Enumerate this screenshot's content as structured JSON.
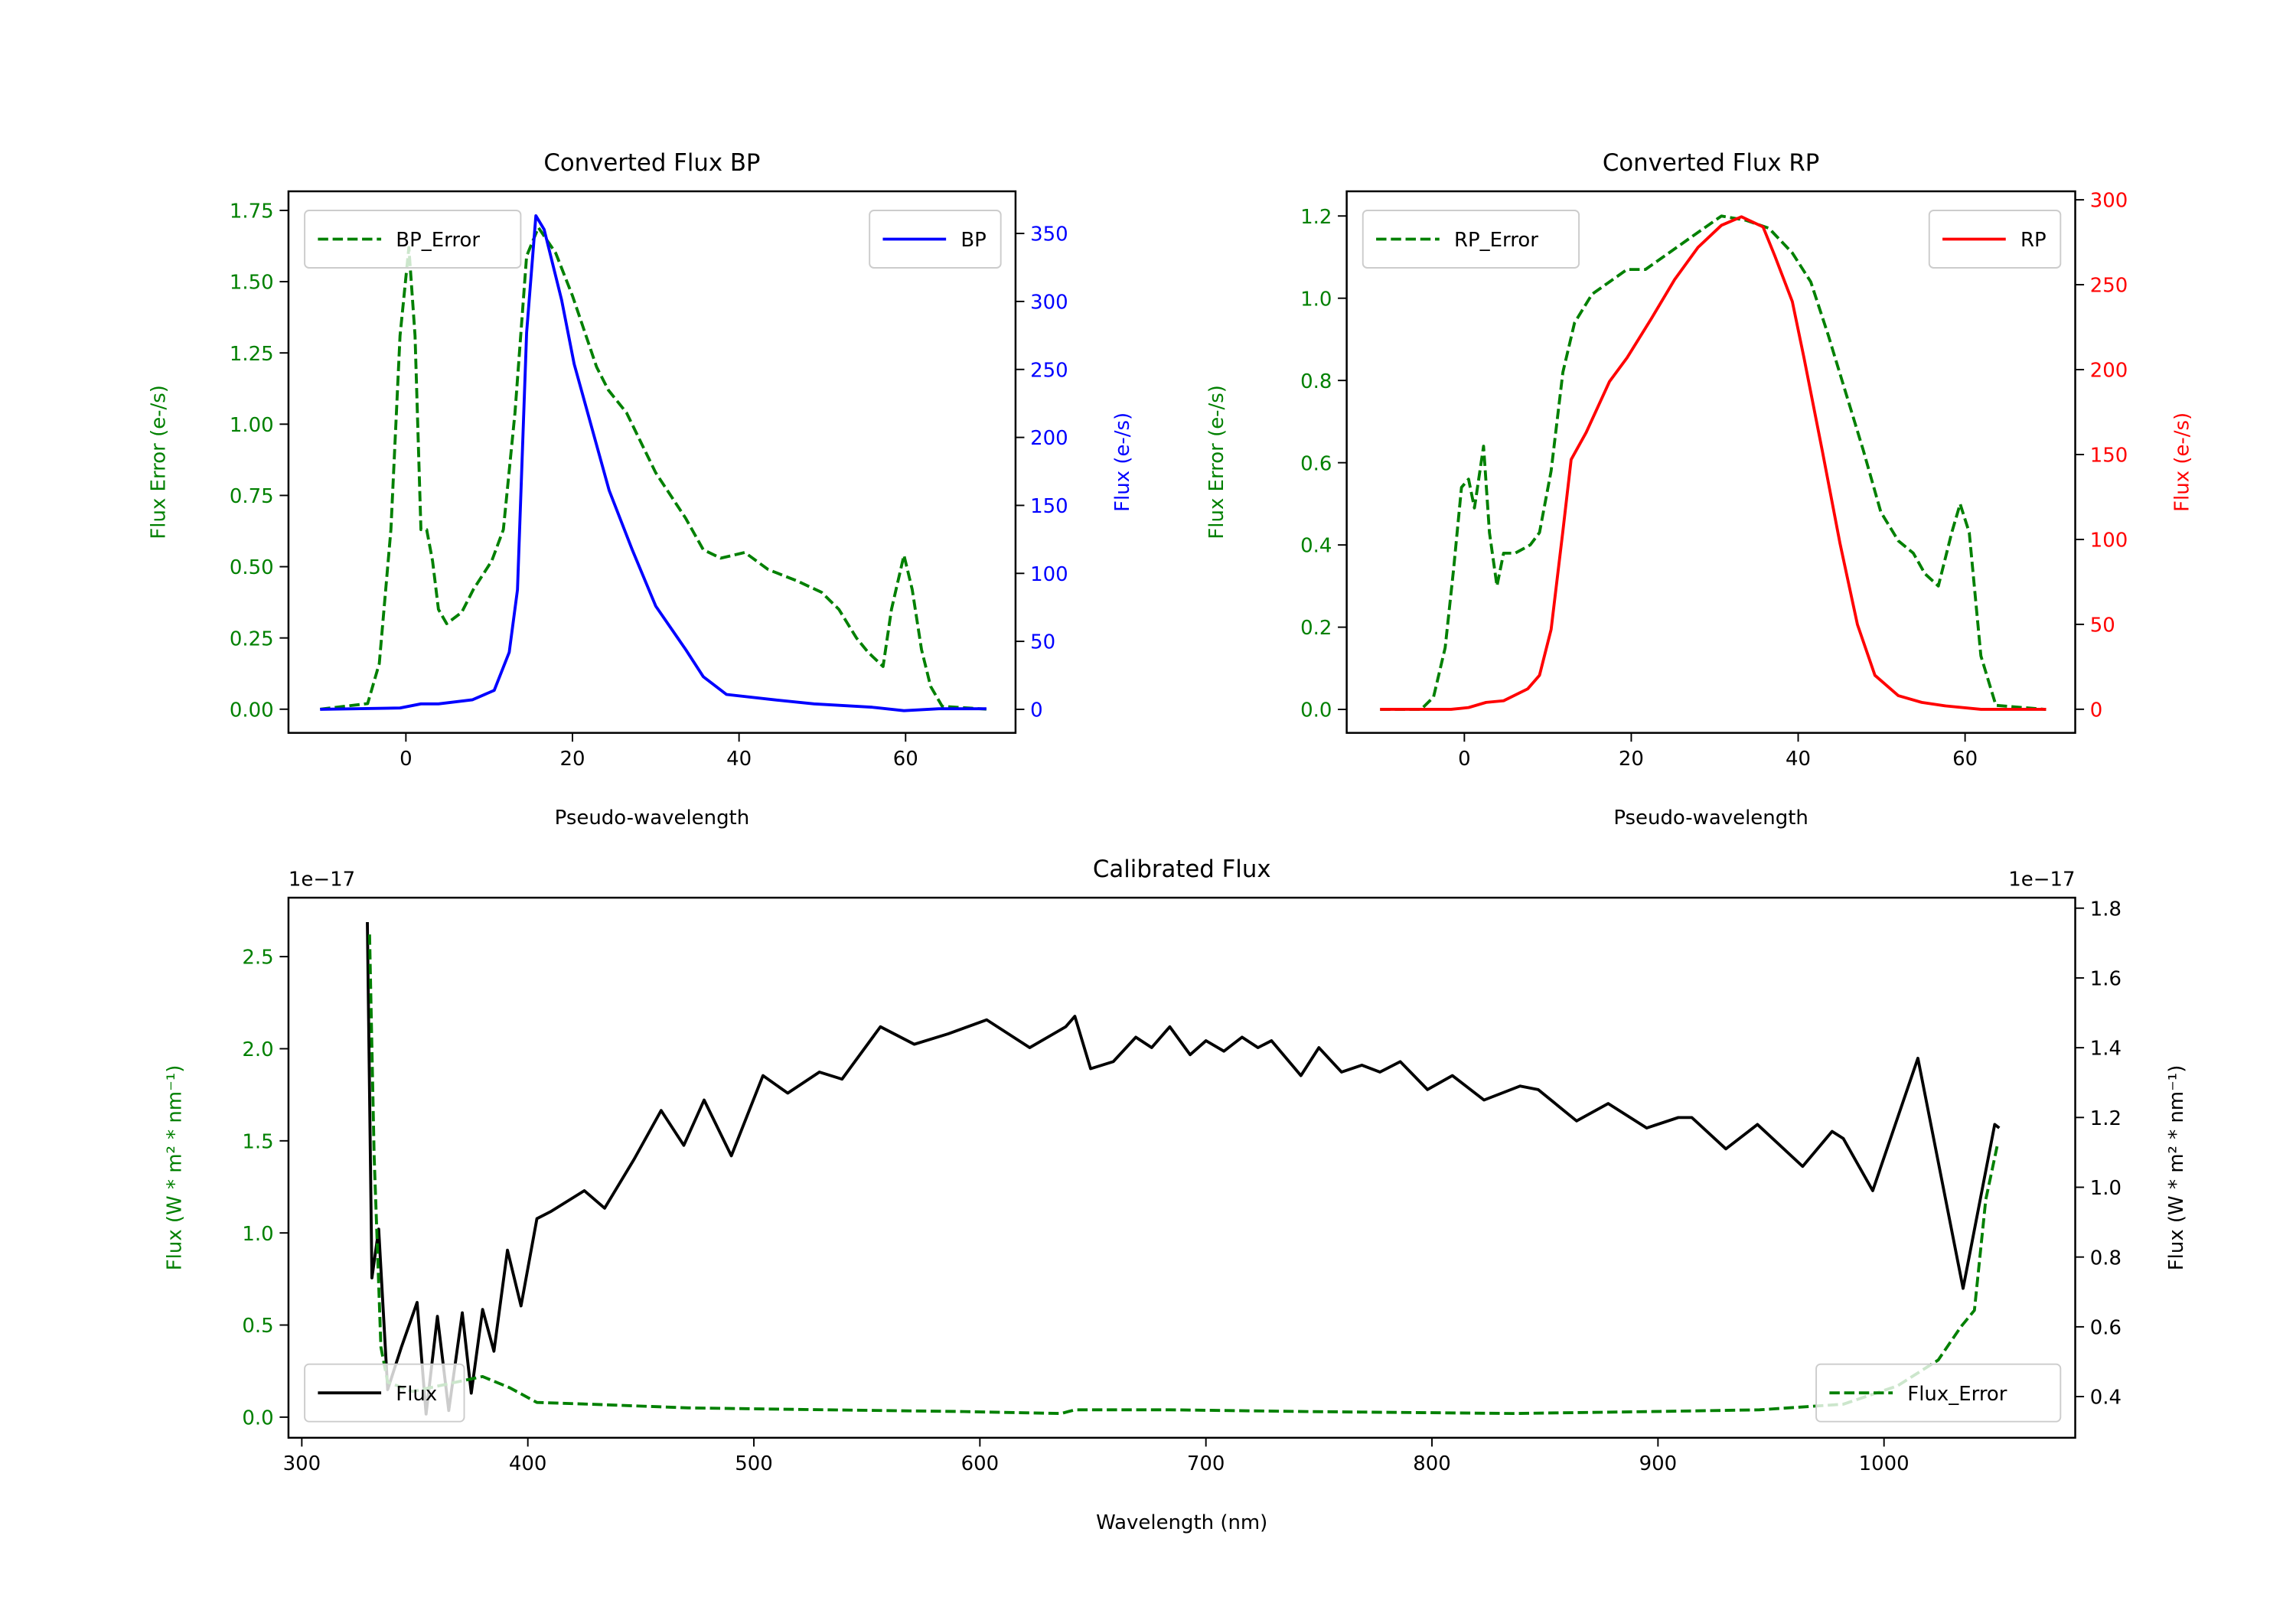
{
  "chart_data": [
    {
      "id": "bp",
      "type": "line",
      "title": "Converted Flux BP",
      "xlabel": "Pseudo-wavelength",
      "xlim": [
        -14.1,
        73.2
      ],
      "xticks": [
        0,
        20,
        40,
        60
      ],
      "xtick_labels": [
        "0",
        "20",
        "40",
        "60"
      ],
      "left_axis": {
        "label": "Flux Error (e-/s)",
        "color": "#008000",
        "ylim": [
          -0.083,
          1.817
        ],
        "ticks": [
          0,
          0.25,
          0.5,
          0.75,
          1.0,
          1.25,
          1.5,
          1.75
        ],
        "tick_labels": [
          "0.00",
          "0.25",
          "0.50",
          "0.75",
          "1.00",
          "1.25",
          "1.50",
          "1.75"
        ]
      },
      "right_axis": {
        "label": "Flux (e-/s)",
        "color": "#0000ff",
        "ylim": [
          -17.3,
          381
        ],
        "ticks": [
          0,
          50,
          100,
          150,
          200,
          250,
          300,
          350
        ],
        "tick_labels": [
          "0",
          "50",
          "100",
          "150",
          "200",
          "250",
          "300",
          "350"
        ]
      },
      "series": [
        {
          "name": "BP_Error",
          "axis": "left",
          "color": "#008000",
          "style": "dashed",
          "legend": "top-left",
          "x": [
            -10.3,
            -4.6,
            -3.2,
            -1.8,
            -0.7,
            0.35,
            1.1,
            1.8,
            2.5,
            3.2,
            3.9,
            4.9,
            6.7,
            8.1,
            10.3,
            11.7,
            13.1,
            14.5,
            15.9,
            18,
            20,
            22.9,
            24.3,
            26.5,
            30,
            33.6,
            35.7,
            37.8,
            40.7,
            43.5,
            47,
            49.9,
            52,
            54.1,
            55.5,
            57.3,
            58.3,
            59.8,
            60.8,
            61.9,
            63,
            64.4,
            69.7
          ],
          "y": [
            0,
            0.02,
            0.16,
            0.63,
            1.31,
            1.62,
            1.31,
            0.63,
            0.63,
            0.52,
            0.35,
            0.3,
            0.34,
            0.42,
            0.52,
            0.63,
            1.04,
            1.59,
            1.69,
            1.6,
            1.45,
            1.2,
            1.12,
            1.04,
            0.83,
            0.67,
            0.56,
            0.53,
            0.55,
            0.49,
            0.45,
            0.41,
            0.35,
            0.25,
            0.2,
            0.15,
            0.35,
            0.54,
            0.42,
            0.21,
            0.08,
            0.01,
            0
          ]
        },
        {
          "name": "BP",
          "axis": "right",
          "color": "#0000ff",
          "style": "solid",
          "legend": "top-right",
          "x": [
            -10.3,
            -0.7,
            1.8,
            3.9,
            8,
            10.6,
            12.4,
            13.4,
            14.5,
            15.6,
            16.6,
            18.7,
            20.2,
            24.4,
            27.2,
            30,
            33.6,
            35.7,
            38.5,
            44.2,
            49,
            56,
            59.8,
            64,
            69.7
          ],
          "y": [
            0,
            1,
            4,
            4,
            7,
            14,
            42,
            88,
            277,
            363,
            353,
            301,
            254,
            161,
            117,
            76,
            44,
            24,
            11,
            7,
            4,
            1.5,
            -1,
            0.5,
            0.5
          ]
        }
      ]
    },
    {
      "id": "rp",
      "type": "line",
      "title": "Converted Flux RP",
      "xlabel": "Pseudo-wavelength",
      "xlim": [
        -14.1,
        73.2
      ],
      "xticks": [
        0,
        20,
        40,
        60
      ],
      "xtick_labels": [
        "0",
        "20",
        "40",
        "60"
      ],
      "left_axis": {
        "label": "Flux Error (e-/s)",
        "color": "#008000",
        "ylim": [
          -0.057,
          1.26
        ],
        "ticks": [
          0,
          0.2,
          0.4,
          0.6,
          0.8,
          1.0,
          1.2
        ],
        "tick_labels": [
          "0.0",
          "0.2",
          "0.4",
          "0.6",
          "0.8",
          "1.0",
          "1.2"
        ]
      },
      "right_axis": {
        "label": "Flux (e-/s)",
        "color": "#ff0000",
        "ylim": [
          -13.9,
          305
        ],
        "ticks": [
          0,
          50,
          100,
          150,
          200,
          250,
          300
        ],
        "tick_labels": [
          "0",
          "50",
          "100",
          "150",
          "200",
          "250",
          "300"
        ]
      },
      "series": [
        {
          "name": "RP_Error",
          "axis": "left",
          "color": "#008000",
          "style": "dashed",
          "legend": "top-left",
          "x": [
            -10.1,
            -5.2,
            -3.7,
            -2.3,
            -1.3,
            -0.35,
            0.5,
            1.2,
            2.3,
            3,
            3.9,
            4.7,
            6.1,
            7.9,
            9,
            10.4,
            11.8,
            13.2,
            15.3,
            17.4,
            19.5,
            21.7,
            24.5,
            27.3,
            30.8,
            33.7,
            36.5,
            39.3,
            41.5,
            43.6,
            45.7,
            47.8,
            49.9,
            52,
            53.8,
            55.2,
            56.8,
            58.4,
            59.4,
            60.5,
            61.9,
            63.7,
            69.7
          ],
          "y": [
            0,
            0,
            0.03,
            0.15,
            0.34,
            0.54,
            0.56,
            0.49,
            0.64,
            0.43,
            0.3,
            0.38,
            0.38,
            0.4,
            0.43,
            0.58,
            0.82,
            0.94,
            1.01,
            1.04,
            1.07,
            1.07,
            1.11,
            1.15,
            1.2,
            1.19,
            1.17,
            1.11,
            1.04,
            0.91,
            0.77,
            0.63,
            0.48,
            0.41,
            0.38,
            0.33,
            0.3,
            0.43,
            0.5,
            0.43,
            0.13,
            0.01,
            0
          ]
        },
        {
          "name": "RP",
          "axis": "right",
          "color": "#ff0000",
          "style": "solid",
          "legend": "top-right",
          "x": [
            -10.1,
            -1.6,
            0.5,
            2.6,
            4.7,
            7.6,
            9,
            10.4,
            11.8,
            12.8,
            14.6,
            17.4,
            19.5,
            22.4,
            25.2,
            28,
            30.8,
            33.2,
            35.8,
            37.2,
            39.3,
            40.7,
            42.9,
            45,
            47.1,
            49.2,
            52,
            54.8,
            57.7,
            61.9,
            69.7
          ],
          "y": [
            0,
            0,
            1,
            4,
            5,
            12,
            20,
            47,
            105,
            147,
            163,
            193,
            207,
            230,
            253,
            272,
            285,
            290,
            284,
            267,
            240,
            207,
            152,
            98,
            50,
            20,
            8,
            4,
            2,
            0,
            0
          ]
        }
      ]
    },
    {
      "id": "cal",
      "type": "line",
      "title": "Calibrated Flux",
      "xlabel": "Wavelength (nm)",
      "xlim": [
        294.1,
        1084.6
      ],
      "xticks": [
        300,
        400,
        500,
        600,
        700,
        800,
        900,
        1000
      ],
      "xtick_labels": [
        "300",
        "400",
        "500",
        "600",
        "700",
        "800",
        "900",
        "1000"
      ],
      "left_axis": {
        "label": "Flux (W * m² * nm⁻¹)",
        "color": "#008000",
        "offset": "1e−17",
        "ylim": [
          -0.112,
          2.82
        ],
        "ticks": [
          0,
          0.5,
          1.0,
          1.5,
          2.0,
          2.5
        ],
        "tick_labels": [
          "0.0",
          "0.5",
          "1.0",
          "1.5",
          "2.0",
          "2.5"
        ]
      },
      "right_axis": {
        "label": "Flux (W * m² * nm⁻¹)",
        "color": "#000000",
        "offset": "1e−17",
        "ylim": [
          0.282,
          1.83
        ],
        "ticks": [
          0.4,
          0.6,
          0.8,
          1.0,
          1.2,
          1.4,
          1.6,
          1.8
        ],
        "tick_labels": [
          "0.4",
          "0.6",
          "0.8",
          "1.0",
          "1.2",
          "1.4",
          "1.6",
          "1.8"
        ]
      },
      "series": [
        {
          "name": "Flux",
          "axis": "right",
          "color": "#000000",
          "style": "solid",
          "legend": "bottom-left",
          "x": [
            329,
            331,
            334,
            338,
            344,
            351,
            355,
            360,
            365,
            371,
            375,
            380,
            385,
            391,
            397,
            404,
            410,
            425,
            434,
            447,
            459,
            469,
            478,
            490,
            504,
            515,
            529,
            539,
            556,
            571,
            586,
            603,
            622,
            638,
            642,
            649,
            659,
            669,
            676,
            684,
            693,
            700,
            708,
            716,
            723,
            729,
            742,
            750,
            760,
            769,
            777,
            786,
            798,
            809,
            823,
            839,
            847,
            864,
            878,
            895,
            909,
            915,
            930,
            944,
            964,
            977,
            982,
            995,
            1015,
            1035,
            1049,
            1051
          ],
          "y": [
            1.76,
            0.74,
            0.88,
            0.42,
            0.54,
            0.67,
            0.35,
            0.63,
            0.36,
            0.64,
            0.41,
            0.65,
            0.53,
            0.82,
            0.66,
            0.91,
            0.93,
            0.99,
            0.94,
            1.08,
            1.22,
            1.12,
            1.25,
            1.09,
            1.32,
            1.27,
            1.33,
            1.31,
            1.46,
            1.41,
            1.44,
            1.48,
            1.4,
            1.46,
            1.49,
            1.34,
            1.36,
            1.43,
            1.4,
            1.46,
            1.38,
            1.42,
            1.39,
            1.43,
            1.4,
            1.42,
            1.32,
            1.4,
            1.33,
            1.35,
            1.33,
            1.36,
            1.28,
            1.32,
            1.25,
            1.29,
            1.28,
            1.19,
            1.24,
            1.17,
            1.2,
            1.2,
            1.11,
            1.18,
            1.06,
            1.16,
            1.14,
            0.99,
            1.37,
            0.71,
            1.18,
            1.17
          ]
        },
        {
          "name": "Flux_Error",
          "axis": "left",
          "color": "#008000",
          "style": "dashed",
          "legend": "bottom-right",
          "x": [
            330,
            332,
            335,
            338,
            349,
            380,
            392,
            404,
            428,
            471,
            532,
            593,
            636,
            642,
            684,
            745,
            836,
            897,
            945,
            982,
            1006,
            1024,
            1034,
            1040,
            1045,
            1050
          ],
          "y": [
            2.62,
            1.42,
            0.38,
            0.19,
            0.14,
            0.22,
            0.16,
            0.08,
            0.07,
            0.05,
            0.04,
            0.03,
            0.02,
            0.04,
            0.04,
            0.03,
            0.02,
            0.03,
            0.04,
            0.07,
            0.17,
            0.31,
            0.49,
            0.58,
            1.18,
            1.47
          ]
        }
      ]
    }
  ]
}
